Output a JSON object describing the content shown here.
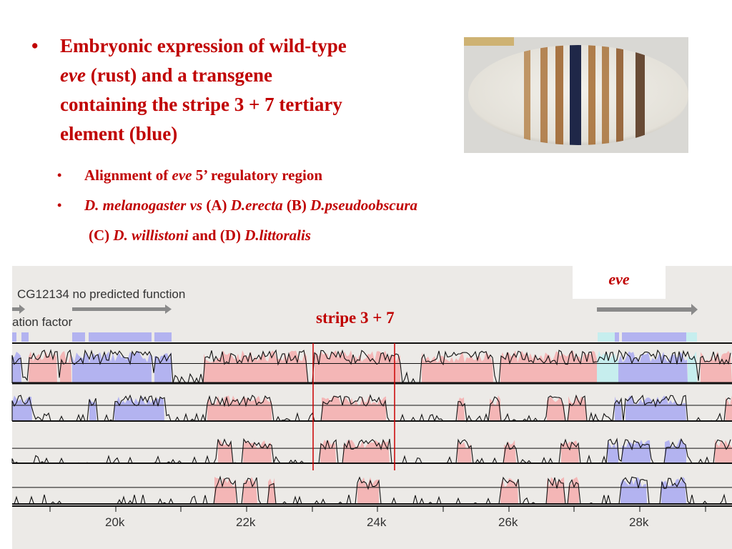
{
  "main_bullet": {
    "bullet": "•",
    "line1": "Embryonic expression of wild-type",
    "gene": "eve",
    "line2_rest": " (rust) and a transgene",
    "line3": "containing the stripe 3 + 7 tertiary",
    "line4": "element (blue)"
  },
  "sub_bullets": {
    "b1": {
      "bullet": "•",
      "prefix": "Alignment of ",
      "gene": "eve",
      "suffix": " 5’ regulatory region"
    },
    "b2": {
      "bullet": "•",
      "species_ref": "D. melanogaster vs",
      "a": " (A) ",
      "sp_a": "D.erecta",
      "b": " (B) ",
      "sp_b": "D.pseudoobscura"
    },
    "b3": {
      "c": "(C) ",
      "sp_c": "D. willistoni",
      "d": " and (D) ",
      "sp_d": "D.littoralis"
    }
  },
  "browser": {
    "gene_label_top": "CG12134 no predicted function",
    "gene_label_left": "ation factor",
    "eve_label": "eve",
    "region_label": "stripe 3 + 7",
    "axis_ticks": [
      "20k",
      "22k",
      "24k",
      "26k",
      "28k"
    ]
  },
  "colors": {
    "title_red": "#c00000",
    "conserved_noncoding": "#f4b6b6",
    "exon": "#b3b3f0",
    "utr": "#c6eeee",
    "region_marker": "#cc0000"
  },
  "embryo_image": {
    "stripes": "rust",
    "transgene_stripe": "blue"
  }
}
